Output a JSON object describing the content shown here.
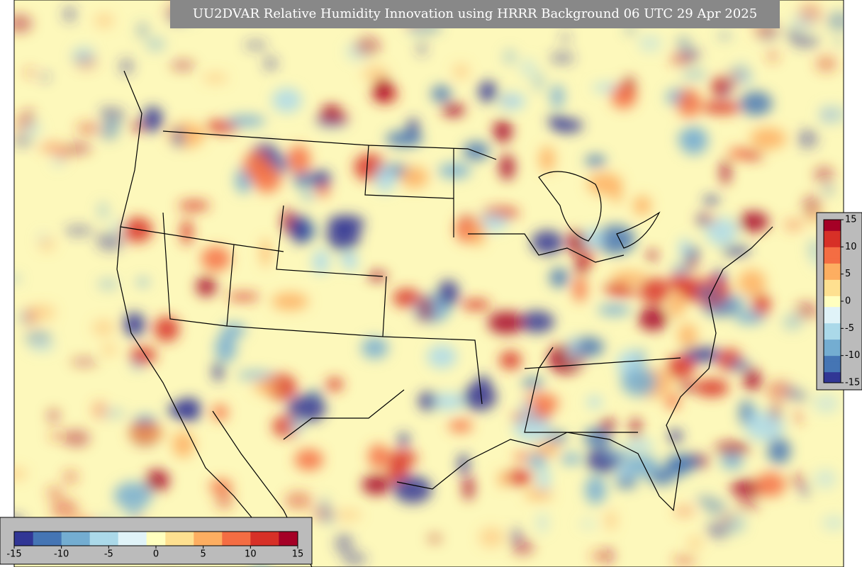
{
  "title": "UU2DVAR Relative Humidity Innovation using HRRR Background 06 UTC 29 Apr 2025",
  "colorbars": [
    {
      "orientation": "horizontal",
      "lim": [
        -15,
        15
      ],
      "ticks": [
        -15,
        -10,
        -5,
        0,
        5,
        10,
        15
      ]
    },
    {
      "orientation": "vertical",
      "lim": [
        -15,
        15
      ],
      "ticks": [
        -15,
        -10,
        -5,
        0,
        5,
        10,
        15
      ]
    }
  ],
  "colors": [
    "#313695",
    "#4575b4",
    "#74add1",
    "#abd9e9",
    "#e0f3f8",
    "#ffffbf",
    "#fee090",
    "#fdae61",
    "#f46d43",
    "#d73027",
    "#a50026"
  ]
}
